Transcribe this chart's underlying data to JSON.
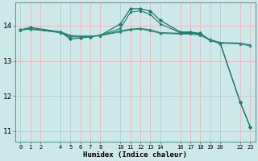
{
  "xlabel": "Humidex (Indice chaleur)",
  "bg_color": "#cce8e8",
  "grid_color": "#e8b8b8",
  "ylim": [
    10.7,
    14.65
  ],
  "xlim": [
    -0.5,
    23.5
  ],
  "yticks": [
    11,
    12,
    13,
    14
  ],
  "xticks": [
    0,
    1,
    2,
    4,
    5,
    6,
    7,
    8,
    10,
    11,
    12,
    13,
    14,
    16,
    17,
    18,
    19,
    20,
    22,
    23
  ],
  "series": [
    {
      "x": [
        0,
        1,
        4,
        5,
        6,
        7,
        8,
        10,
        11,
        12,
        13,
        14,
        16,
        17,
        18,
        19,
        20,
        22,
        23
      ],
      "y": [
        13.88,
        13.95,
        13.82,
        13.62,
        13.65,
        13.68,
        13.72,
        14.05,
        14.48,
        14.48,
        14.42,
        14.15,
        13.82,
        13.82,
        13.78,
        13.58,
        13.5,
        11.82,
        11.12
      ],
      "color": "#1a7a6e",
      "marker": "D",
      "markersize": 2.2,
      "linewidth": 0.9
    },
    {
      "x": [
        0,
        1,
        4,
        5,
        6,
        7,
        8,
        10,
        11,
        12,
        13,
        14,
        16,
        17,
        18,
        19,
        20,
        22,
        23
      ],
      "y": [
        13.88,
        13.92,
        13.8,
        13.68,
        13.68,
        13.7,
        13.72,
        13.92,
        14.38,
        14.42,
        14.32,
        14.05,
        13.8,
        13.8,
        13.75,
        13.58,
        13.5,
        11.82,
        11.12
      ],
      "color": "#1a7a6e",
      "marker": "s",
      "markersize": 1.8,
      "linewidth": 0.8
    },
    {
      "x": [
        0,
        1,
        4,
        5,
        6,
        7,
        8,
        10,
        11,
        12,
        13,
        14,
        16,
        17,
        18,
        19,
        20,
        22,
        23
      ],
      "y": [
        13.88,
        13.9,
        13.82,
        13.72,
        13.7,
        13.7,
        13.72,
        13.85,
        13.9,
        13.92,
        13.88,
        13.8,
        13.78,
        13.78,
        13.75,
        13.6,
        13.52,
        13.5,
        13.45
      ],
      "color": "#1a7a6e",
      "marker": "^",
      "markersize": 2.2,
      "linewidth": 0.9
    },
    {
      "x": [
        0,
        1,
        4,
        5,
        6,
        7,
        8,
        10,
        11,
        12,
        13,
        14,
        16,
        17,
        18,
        19,
        20,
        22,
        23
      ],
      "y": [
        13.88,
        13.9,
        13.8,
        13.7,
        13.7,
        13.7,
        13.72,
        13.82,
        13.88,
        13.9,
        13.85,
        13.78,
        13.76,
        13.76,
        13.73,
        13.58,
        13.5,
        13.48,
        13.42
      ],
      "color": "#2a8a7e",
      "marker": "o",
      "markersize": 1.5,
      "linewidth": 0.7
    }
  ]
}
